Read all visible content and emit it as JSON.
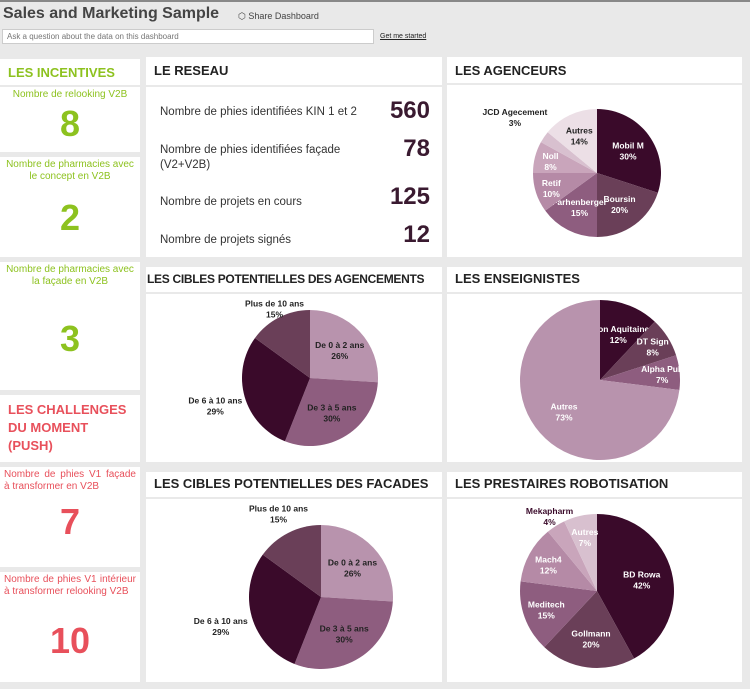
{
  "header": {
    "title": "Sales and Marketing Sample",
    "share": "Share Dashboard",
    "qa_placeholder": "Ask a question about the data on this dashboard",
    "get_started": "Get me started"
  },
  "left": {
    "incentives": "LES INCENTIVES",
    "k1_label": "Nombre de relooking V2B",
    "k1": "8",
    "k2_label": "Nombre de pharmacies avec le concept en V2B",
    "k2": "2",
    "k3_label": "Nombre de pharmacies avec la façade en V2B",
    "k3": "3",
    "challenges": "LES CHALLENGES DU MOMENT (PUSH)",
    "k4_label": "Nombre de phies V1 façade à transformer en V2B",
    "k4": "7",
    "k5_label": "Nombre de phies V1 intérieur à transformer relooking V2B",
    "k5": "10"
  },
  "reseau": {
    "title": "LE RESEAU",
    "items": [
      {
        "label": "Nombre de phies identifiées KIN 1 et 2",
        "value": "560"
      },
      {
        "label": "Nombre de phies identifiées façade (V2+V2B)",
        "value": "78"
      },
      {
        "label": "Nombre de projets en cours",
        "value": "125"
      },
      {
        "label": "Nombre de projets signés",
        "value": "12"
      }
    ]
  },
  "colors": {
    "accent_green": "#8dc21f",
    "accent_red": "#e8505b"
  },
  "chart_data": [
    {
      "id": "agenceurs",
      "type": "pie",
      "title": "LES AGENCEURS",
      "slices": [
        {
          "name": "Mobil M",
          "value": 30,
          "color": "#3a0a2a"
        },
        {
          "name": "Boursin",
          "value": 20,
          "color": "#6a3f58"
        },
        {
          "name": "Farhenberger",
          "value": 15,
          "color": "#8e5d7f"
        },
        {
          "name": "Retif",
          "value": 10,
          "color": "#b58aa6"
        },
        {
          "name": "Noll",
          "value": 8,
          "color": "#c9a5bb"
        },
        {
          "name": "JCD Agecement",
          "value": 3,
          "color": "#d8c0cf"
        },
        {
          "name": "Autres",
          "value": 14,
          "color": "#ecdfe6"
        }
      ]
    },
    {
      "id": "cibles-agencements",
      "type": "pie",
      "title": "LES CIBLES POTENTIELLES DES AGENCEMENTS",
      "slices": [
        {
          "name": "De 0 à 2 ans",
          "value": 26,
          "color": "#b893ad"
        },
        {
          "name": "De 3 à 5 ans",
          "value": 30,
          "color": "#8e5d7f"
        },
        {
          "name": "De 6 à 10 ans",
          "value": 29,
          "color": "#3a0a2a"
        },
        {
          "name": "Plus de 10 ans",
          "value": 15,
          "color": "#6a3f58"
        }
      ]
    },
    {
      "id": "enseignistes",
      "type": "pie",
      "title": "LES ENSEIGNISTES",
      "slices": [
        {
          "name": "Neon Aquitaine",
          "value": 12,
          "color": "#3a0a2a"
        },
        {
          "name": "DT Sign",
          "value": 8,
          "color": "#6a3f58"
        },
        {
          "name": "Alpha Pub",
          "value": 7,
          "color": "#8e5d7f"
        },
        {
          "name": "Autres",
          "value": 73,
          "color": "#b893ad"
        }
      ]
    },
    {
      "id": "cibles-facades",
      "type": "pie",
      "title": "LES CIBLES POTENTIELLES DES FACADES",
      "slices": [
        {
          "name": "De 0 à 2 ans",
          "value": 26,
          "color": "#b893ad"
        },
        {
          "name": "De 3 à 5 ans",
          "value": 30,
          "color": "#8e5d7f"
        },
        {
          "name": "De 6 à 10 ans",
          "value": 29,
          "color": "#3a0a2a"
        },
        {
          "name": "Plus de 10 ans",
          "value": 15,
          "color": "#6a3f58"
        }
      ]
    },
    {
      "id": "prestaires",
      "type": "pie",
      "title": "LES PRESTAIRES ROBOTISATION",
      "slices": [
        {
          "name": "BD Rowa",
          "value": 42,
          "color": "#3a0a2a"
        },
        {
          "name": "Gollmann",
          "value": 20,
          "color": "#6a3f58"
        },
        {
          "name": "Meditech",
          "value": 15,
          "color": "#8e5d7f"
        },
        {
          "name": "Mach4",
          "value": 12,
          "color": "#b58aa6"
        },
        {
          "name": "Mekapharm",
          "value": 4,
          "color": "#c9a5bb"
        },
        {
          "name": "Autres",
          "value": 7,
          "color": "#d8c0cf"
        }
      ]
    }
  ]
}
